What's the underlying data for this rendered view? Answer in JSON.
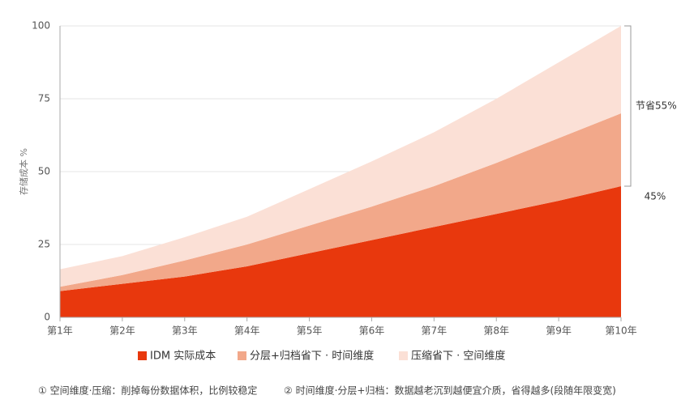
{
  "chart_data": {
    "type": "area",
    "stacked": true,
    "y_label": "存储成本 %",
    "categories": [
      "第1年",
      "第2年",
      "第3年",
      "第4年",
      "第5年",
      "第6年",
      "第7年",
      "第8年",
      "第9年",
      "第10年"
    ],
    "series": [
      {
        "name": "IDM 实际成本",
        "color": "#e8380d",
        "values": [
          9,
          11.5,
          14,
          17.5,
          22,
          26.5,
          31,
          35.5,
          40,
          45
        ]
      },
      {
        "name": "分层+归档省下 · 时间维度",
        "color": "#f2a88a",
        "values": [
          1.5,
          3,
          5.5,
          7.5,
          9.5,
          11.5,
          14,
          17.5,
          21.5,
          25
        ]
      },
      {
        "name": "压缩省下 · 空间维度",
        "color": "#fbe0d6",
        "values": [
          6,
          6.5,
          8,
          9.5,
          12.5,
          15.5,
          18.5,
          22,
          26,
          30
        ]
      }
    ],
    "ylim": [
      0,
      100
    ],
    "yticks": [
      0,
      25,
      50,
      75,
      100
    ],
    "grid": true,
    "annotations": [
      "节省55%",
      "45%"
    ],
    "footnotes": [
      "① 空间维度·压缩：削掉每份数据体积，比例较稳定",
      "② 时间维度·分层+归档：数据越老沉到越便宜介质，省得越多(段随年限变宽)"
    ]
  }
}
